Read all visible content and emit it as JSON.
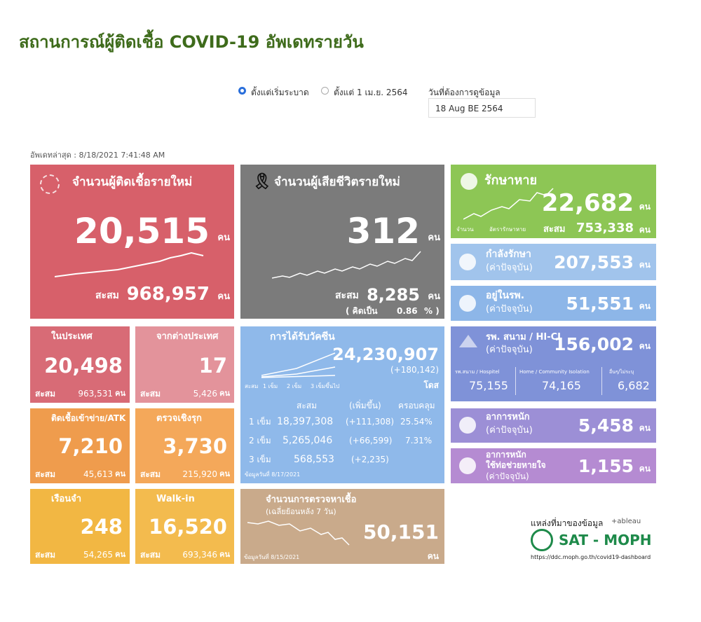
{
  "header": {
    "title": "สถานการณ์ผู้ติดเชื้อ COVID-19 อัพเดทรายวัน"
  },
  "filters": {
    "options": [
      "ตั้งแต่เริ่มระบาด",
      "ตั้งแต่ 1 เม.ย. 2564"
    ],
    "date_label": "วันที่ต้องการดูข้อมูล",
    "date_value": "18 Aug BE 2564"
  },
  "updated": "อัพเดทล่าสุด : 8/18/2021 7:41:48 AM",
  "tiles": {
    "new_cases": {
      "title": "จำนวนผู้ติดเชื้อรายใหม่",
      "value": "20,515",
      "unit": "คน",
      "total_label": "สะสม",
      "total": "968,957",
      "total_unit": "คน"
    },
    "new_deaths": {
      "title": "จำนวนผู้เสียชีวิตรายใหม่",
      "value": "312",
      "unit": "คน",
      "total_label": "สะสม",
      "total": "8,285",
      "total_unit": "คน",
      "rate_open": "( คิดเป็น",
      "rate": "0.86",
      "rate_close": "% )"
    },
    "recovered": {
      "title": "รักษาหาย",
      "value": "22,682",
      "unit": "คน",
      "legend": [
        "จำนวน",
        "อัตรารักษาหาย"
      ],
      "total_label": "สะสม",
      "total": "753,338",
      "total_unit": "คน"
    },
    "treating": {
      "title": "กำลังรักษา",
      "subtitle": "(ค่าปัจจุบัน)",
      "value": "207,553",
      "unit": "คน"
    },
    "hospital": {
      "title": "อยู่ในรพ.",
      "subtitle": "(ค่าปัจจุบัน)",
      "value": "51,551",
      "unit": "คน"
    },
    "domestic": {
      "title": "ในประเทศ",
      "value": "20,498",
      "total_label": "สะสม",
      "total": "963,531",
      "total_unit": "คน"
    },
    "imported": {
      "title": "จากต่างประเทศ",
      "value": "17",
      "total_label": "สะสม",
      "total": "5,426",
      "total_unit": "คน"
    },
    "vaccine": {
      "title": "การได้รับวัคซีน",
      "value": "24,230,907",
      "change": "(+180,142)",
      "unit": "โดส",
      "legend": [
        "สะสม",
        "1 เข็ม",
        "2 เข็ม",
        "3 เข็มขึ้นไป"
      ],
      "columns": [
        "สะสม",
        "(เพิ่มขึ้น)",
        "ครอบคลุม"
      ],
      "rows": [
        [
          "1 เข็ม",
          "18,397,308",
          "(+111,308)",
          "25.54%"
        ],
        [
          "2 เข็ม",
          "5,265,046",
          "(+66,599)",
          "7.31%"
        ],
        [
          "3 เข็ม",
          "568,553",
          "(+2,235)"
        ]
      ],
      "footnote": "ข้อมูลวันที่ 8/17/2021"
    },
    "field_hospital": {
      "title": "รพ. สนาม / HI-CI",
      "subtitle": "(ค่าปัจจุบัน)",
      "value": "156,002",
      "unit": "คน",
      "breakdown": [
        {
          "label": "รพ.สนาม / Hospitel",
          "value": "75,155"
        },
        {
          "label": "Home / Community Isolation",
          "value": "74,165"
        },
        {
          "label": "อื่นๆ/ไม่ระบุ",
          "value": "6,682"
        }
      ]
    },
    "atk": {
      "title": "ติดเชื้อเข้าข่าย/ATK",
      "value": "7,210",
      "total_label": "สะสม",
      "total": "45,613",
      "total_unit": "คน"
    },
    "proactive": {
      "title": "ตรวจเชิงรุก",
      "value": "3,730",
      "total_label": "สะสม",
      "total": "215,920",
      "total_unit": "คน"
    },
    "severe": {
      "title": "อาการหนัก",
      "subtitle": "(ค่าปัจจุบัน)",
      "value": "5,458",
      "unit": "คน"
    },
    "ventilator": {
      "title": "อาการหนัก",
      "title2": "ใช้ท่อช่วยหายใจ",
      "subtitle": "(ค่าปัจจุบัน)",
      "value": "1,155",
      "unit": "คน"
    },
    "prison": {
      "title": "เรือนจำ",
      "value": "248",
      "total_label": "สะสม",
      "total": "54,265",
      "total_unit": "คน"
    },
    "walkin": {
      "title": "Walk-in",
      "value": "16,520",
      "total_label": "สะสม",
      "total": "693,346",
      "total_unit": "คน"
    },
    "tests": {
      "title": "จำนวนการตรวจหาเชื้อ",
      "subtitle": "(เฉลี่ยย้อนหลัง 7 วัน)",
      "value": "50,151",
      "unit": "คน",
      "footnote": "ข้อมูลวันที่ 8/15/2021"
    }
  },
  "source": {
    "label": "แหล่งที่มาของข้อมูล",
    "tableau": "+ableau",
    "logo": "SAT - MOPH",
    "url": "https://ddc.moph.go.th/covid19-dashboard"
  }
}
